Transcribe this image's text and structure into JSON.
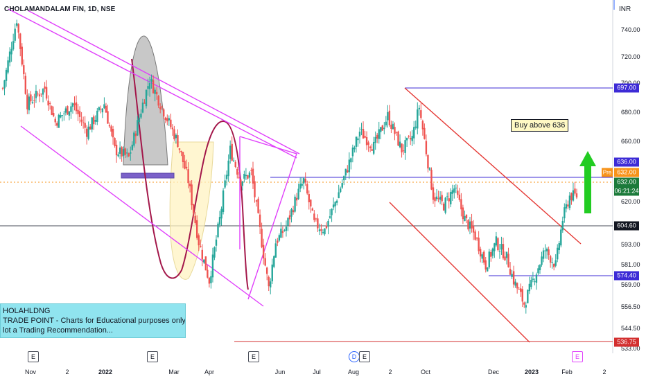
{
  "title": "CHOLAMANDALAM FIN, 1D, NSE",
  "currency": "INR",
  "y_ticks": [
    "740.00",
    "720.00",
    "700.00",
    "680.00",
    "660.00",
    "620.00",
    "593.00",
    "581.00",
    "569.00",
    "556.50",
    "544.50",
    "533.00"
  ],
  "badges": {
    "b697": "697.00",
    "b636": "636.00",
    "pre_label": "Pre",
    "pre_price": "632.00",
    "last_price": "632.00",
    "countdown": "06:21:24",
    "b604": "604.60",
    "b574": "574.40",
    "b536": "536.75"
  },
  "x_ticks": {
    "nov": "Nov",
    "d2a": "2",
    "y2022": "2022",
    "mar": "Mar",
    "apr": "Apr",
    "jun": "Jun",
    "jul": "Jul",
    "aug": "Aug",
    "d2b": "2",
    "oct": "Oct",
    "dec": "Dec",
    "y2023": "2023",
    "feb": "Feb",
    "d2c": "2"
  },
  "events": {
    "e1": "E",
    "e2": "E",
    "e3": "E",
    "d": "D",
    "e4": "E",
    "e5": "E"
  },
  "note": {
    "line1": "HOLAHLDNG",
    "line2": " TRADE POINT - Charts for Educational purposes only.",
    "line3": "lot a Trading Recommendation..."
  },
  "annotation": "Buy above 636",
  "colors": {
    "up": "#26a69a",
    "down": "#ef5350",
    "channel_magenta": "#e040fb",
    "channel_red": "#e53935",
    "level_blue": "#3d2bd6",
    "up_arrow": "#22cc22",
    "note_bg": "#90e4ef",
    "pre_orange": "#f7931a",
    "last_green": "#1b7a3a"
  },
  "chart_data": {
    "type": "candlestick",
    "x_range": [
      "2021-10-25",
      "2023-02-28"
    ],
    "y_range": [
      530,
      752
    ],
    "horizontal_levels": [
      697.0,
      636.0,
      632.0,
      604.6,
      574.4,
      536.75
    ],
    "annotation": "Buy above 636",
    "price_path": [
      [
        0,
        700
      ],
      [
        8,
        745
      ],
      [
        14,
        690
      ],
      [
        24,
        700
      ],
      [
        30,
        678
      ],
      [
        40,
        690
      ],
      [
        48,
        672
      ],
      [
        58,
        690
      ],
      [
        64,
        660
      ],
      [
        72,
        655
      ],
      [
        80,
        690
      ],
      [
        84,
        706
      ],
      [
        90,
        690
      ],
      [
        100,
        665
      ],
      [
        106,
        640
      ],
      [
        112,
        600
      ],
      [
        118,
        575
      ],
      [
        124,
        615
      ],
      [
        130,
        660
      ],
      [
        136,
        640
      ],
      [
        142,
        645
      ],
      [
        148,
        600
      ],
      [
        152,
        570
      ],
      [
        156,
        600
      ],
      [
        162,
        610
      ],
      [
        168,
        630
      ],
      [
        172,
        640
      ],
      [
        178,
        612
      ],
      [
        184,
        608
      ],
      [
        190,
        626
      ],
      [
        196,
        645
      ],
      [
        204,
        672
      ],
      [
        212,
        662
      ],
      [
        220,
        682
      ],
      [
        228,
        660
      ],
      [
        234,
        668
      ],
      [
        238,
        688
      ],
      [
        246,
        630
      ],
      [
        252,
        624
      ],
      [
        258,
        635
      ],
      [
        264,
        615
      ],
      [
        270,
        604
      ],
      [
        276,
        585
      ],
      [
        282,
        600
      ],
      [
        288,
        590
      ],
      [
        292,
        575
      ],
      [
        298,
        560
      ],
      [
        304,
        578
      ],
      [
        310,
        595
      ],
      [
        316,
        585
      ],
      [
        320,
        615
      ],
      [
        324,
        630
      ],
      [
        328,
        630
      ]
    ]
  }
}
